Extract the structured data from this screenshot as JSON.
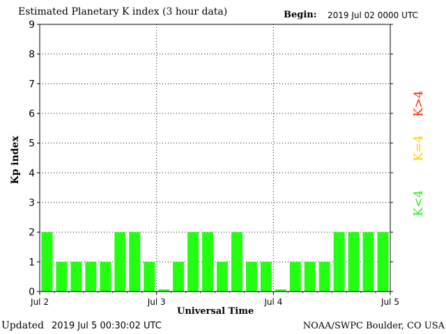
{
  "chart_data": {
    "type": "bar",
    "title": "Estimated Planetary K index (3 hour data)",
    "begin_label": "Begin:",
    "begin_value": "2019 Jul 02 0000 UTC",
    "xlabel": "Universal Time",
    "ylabel": "Kp index",
    "ylim": [
      0,
      9
    ],
    "yticks": [
      "0",
      "1",
      "2",
      "3",
      "4",
      "5",
      "6",
      "7",
      "8",
      "9"
    ],
    "xticks": [
      "Jul 2",
      "Jul 3",
      "Jul 4",
      "Jul 5"
    ],
    "grid": true,
    "values": [
      2,
      1,
      1,
      1,
      1,
      2,
      2,
      1,
      0.07,
      1,
      2,
      2,
      1,
      2,
      1,
      1,
      0.07,
      1,
      1,
      1,
      2,
      2,
      2,
      2
    ],
    "bar_color": "#22ff11",
    "legend": [
      {
        "label": "K<4",
        "color": "#22ee22"
      },
      {
        "label": "K=4",
        "color": "#ffcc00"
      },
      {
        "label": "K>4",
        "color": "#ff2200"
      }
    ]
  },
  "footer": {
    "updated_label": "Updated",
    "updated_value": "2019 Jul  5 00:30:02 UTC",
    "credit": "NOAA/SWPC Boulder, CO USA"
  }
}
